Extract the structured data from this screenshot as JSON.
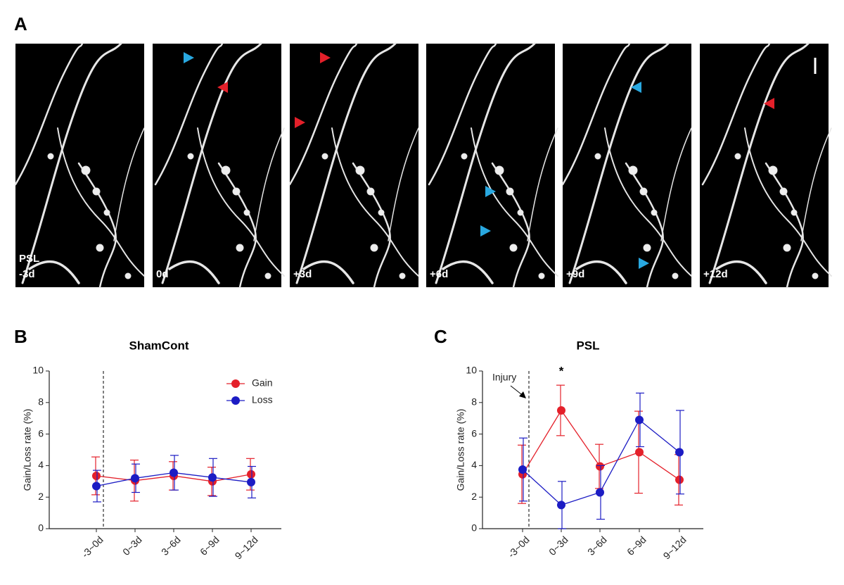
{
  "panel_a": {
    "label": "A",
    "frames": [
      [
        "PSL",
        "-3d"
      ],
      [
        "0d"
      ],
      [
        "+3d"
      ],
      [
        "+6d"
      ],
      [
        "+9d"
      ],
      [
        "+12d"
      ]
    ]
  },
  "chart_data": [
    {
      "type": "line",
      "panel_label": "B",
      "title": "ShamCont",
      "ylabel": "Gain/Loss rate (%)",
      "categories": [
        "-3~0d",
        "0~3d",
        "3~6d",
        "6~9d",
        "9~12d"
      ],
      "series": [
        {
          "name": "Gain",
          "color": "#e4202a",
          "values": [
            3.35,
            3.05,
            3.35,
            3.0,
            3.45
          ],
          "errors": [
            1.2,
            1.3,
            0.9,
            0.9,
            1.0
          ]
        },
        {
          "name": "Loss",
          "color": "#1c1cc4",
          "values": [
            2.7,
            3.2,
            3.55,
            3.25,
            2.95
          ],
          "errors": [
            1.0,
            0.9,
            1.1,
            1.2,
            1.0
          ]
        }
      ],
      "ylim": [
        0,
        10
      ],
      "yticks": [
        0,
        2,
        4,
        6,
        8,
        10
      ],
      "legend": "upper right"
    },
    {
      "type": "line",
      "panel_label": "C",
      "title": "PSL",
      "ylabel": "Gain/Loss rate (%)",
      "categories": [
        "-3~0d",
        "0~3d",
        "3~6d",
        "6~9d",
        "9~12d"
      ],
      "series": [
        {
          "name": "Gain",
          "color": "#e4202a",
          "values": [
            3.45,
            7.5,
            3.95,
            4.85,
            3.1
          ],
          "errors": [
            1.85,
            1.6,
            1.4,
            2.6,
            1.6
          ]
        },
        {
          "name": "Loss",
          "color": "#1c1cc4",
          "values": [
            3.75,
            1.5,
            2.3,
            6.9,
            4.85
          ],
          "errors": [
            2.0,
            1.5,
            1.7,
            1.7,
            2.65
          ]
        }
      ],
      "ylim": [
        0,
        10
      ],
      "yticks": [
        0,
        2,
        4,
        6,
        8,
        10
      ],
      "annotations": [
        "Injury",
        "*"
      ]
    }
  ]
}
